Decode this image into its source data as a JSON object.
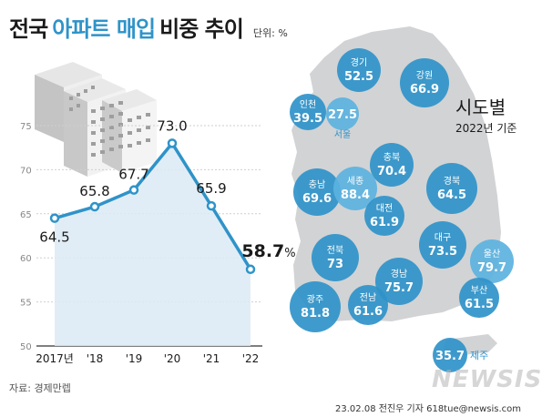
{
  "header": {
    "title_part1": "전국",
    "title_part2": "아파트 매입",
    "title_part3": "비중 추이",
    "unit": "단위: %"
  },
  "chart_data": {
    "type": "area",
    "categories": [
      "2017년",
      "'18",
      "'19",
      "'20",
      "'21",
      "'22"
    ],
    "values": [
      64.5,
      65.8,
      67.7,
      73.0,
      65.9,
      58.7
    ],
    "value_labels": [
      "64.5",
      "65.8",
      "67.7",
      "73.0",
      "65.9",
      "58.7"
    ],
    "highlight_label": "58.7",
    "highlight_unit": "%",
    "ylim": [
      50,
      75
    ],
    "yticks": [
      50,
      55,
      60,
      65,
      70,
      75
    ],
    "grid": true,
    "line_color": "#2f93c9",
    "area_color": "#dceaf5"
  },
  "map": {
    "title": "시도별",
    "subtitle": "2022년 기준",
    "regions": [
      {
        "name": "경기",
        "value": "52.5"
      },
      {
        "name": "강원",
        "value": "66.9"
      },
      {
        "name": "인천",
        "value": "39.5"
      },
      {
        "name": "",
        "value": "27.5",
        "label_below": "서울"
      },
      {
        "name": "충북",
        "value": "70.4"
      },
      {
        "name": "충남",
        "value": "69.6"
      },
      {
        "name": "세종",
        "value": "88.4"
      },
      {
        "name": "대전",
        "value": "61.9"
      },
      {
        "name": "경북",
        "value": "64.5"
      },
      {
        "name": "전북",
        "value": "73"
      },
      {
        "name": "대구",
        "value": "73.5"
      },
      {
        "name": "울산",
        "value": "79.7"
      },
      {
        "name": "경남",
        "value": "75.7"
      },
      {
        "name": "부산",
        "value": "61.5"
      },
      {
        "name": "광주",
        "value": "81.8"
      },
      {
        "name": "전남",
        "value": "61.6"
      },
      {
        "name": "",
        "value": "35.7",
        "label_right": "제주"
      }
    ],
    "colors": {
      "land": "#d2d3d5",
      "circle_dark": "#2f93c9",
      "circle_light": "#5bb2df"
    }
  },
  "footer": {
    "source": "자료: 경제만렙",
    "credit": "23.02.08 전진우 기자 618tue@newsis.com",
    "watermark": "NEWSIS"
  }
}
